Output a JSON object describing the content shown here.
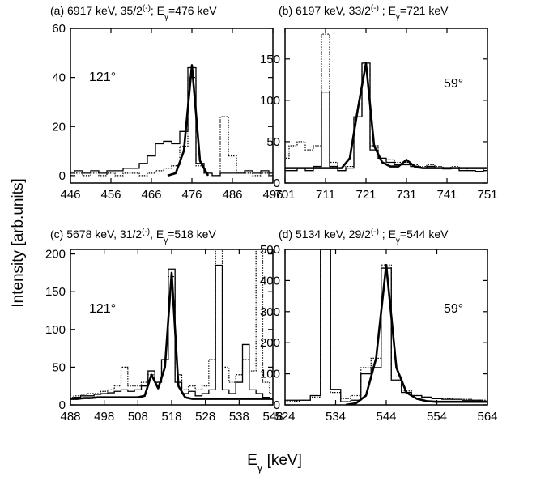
{
  "ylabel": "Intensity [arb.units]",
  "xlabel": [
    {
      "text": "E"
    },
    {
      "text": "γ",
      "shift": "sub"
    },
    {
      "text": " [keV]"
    }
  ],
  "chart_data": [
    {
      "type": "line",
      "step": true,
      "title": [
        {
          "text": "(a) 6917 keV, 35/2"
        },
        {
          "text": "(-)",
          "shift": "sup"
        },
        {
          "text": ";  E"
        },
        {
          "text": "γ",
          "shift": "sub"
        },
        {
          "text": "=476 keV"
        }
      ],
      "annotation": "121°",
      "x": [
        446,
        448,
        450,
        452,
        454,
        456,
        458,
        460,
        462,
        464,
        466,
        468,
        470,
        472,
        474,
        476,
        478,
        480,
        482,
        484,
        486,
        488,
        490,
        492,
        494,
        496
      ],
      "series": [
        {
          "color": "#000000",
          "style": "solid",
          "values": [
            1,
            2,
            1,
            2,
            1,
            2,
            2,
            3,
            3,
            5,
            8,
            13,
            14,
            13,
            18,
            44,
            5,
            1,
            0,
            1,
            1,
            1,
            2,
            1,
            2,
            1
          ]
        },
        {
          "color": "#000000",
          "style": "dotted",
          "values": [
            0,
            1,
            0,
            1,
            0,
            1,
            0,
            1,
            1,
            0,
            1,
            2,
            3,
            4,
            12,
            40,
            4,
            1,
            0,
            24,
            8,
            1,
            1,
            0,
            1,
            0
          ]
        },
        {
          "color": "#000000",
          "style": "fit",
          "values": [
            null,
            null,
            null,
            null,
            null,
            null,
            null,
            null,
            null,
            null,
            null,
            null,
            0,
            1,
            10,
            45,
            6,
            0,
            null,
            null,
            null,
            null,
            null,
            null,
            null,
            null
          ]
        }
      ],
      "xlim": [
        446,
        496
      ],
      "xticks": [
        446,
        456,
        466,
        476,
        486,
        496
      ],
      "ylim": [
        -3,
        60
      ],
      "yticks": [
        0,
        20,
        40,
        60
      ]
    },
    {
      "type": "line",
      "step": true,
      "title": [
        {
          "text": "(b) 6197 keV, 33/2"
        },
        {
          "text": "(-)",
          "shift": "sup"
        },
        {
          "text": " ; E"
        },
        {
          "text": "γ",
          "shift": "sub"
        },
        {
          "text": "=721 keV"
        }
      ],
      "annotation": "59°",
      "x": [
        701,
        703,
        705,
        707,
        709,
        711,
        713,
        715,
        717,
        719,
        721,
        723,
        725,
        727,
        729,
        731,
        733,
        735,
        737,
        739,
        741,
        743,
        745,
        747,
        749,
        751
      ],
      "series": [
        {
          "color": "#000000",
          "style": "dotted",
          "values": [
            30,
            45,
            50,
            40,
            45,
            180,
            25,
            15,
            20,
            80,
            145,
            45,
            30,
            28,
            25,
            25,
            22,
            20,
            22,
            20,
            18,
            20,
            18,
            15,
            18,
            15
          ]
        },
        {
          "color": "#000000",
          "style": "solid",
          "values": [
            15,
            15,
            18,
            15,
            20,
            110,
            20,
            15,
            18,
            80,
            145,
            40,
            30,
            25,
            22,
            22,
            20,
            18,
            20,
            18,
            17,
            18,
            15,
            15,
            14,
            15
          ]
        },
        {
          "color": "#000000",
          "style": "fit",
          "values": [
            18,
            18,
            18,
            18,
            18,
            18,
            18,
            18,
            30,
            90,
            145,
            45,
            25,
            20,
            20,
            28,
            20,
            18,
            18,
            18,
            18,
            18,
            18,
            18,
            18,
            18
          ]
        }
      ],
      "xlim": [
        701,
        751
      ],
      "xticks": [
        701,
        711,
        721,
        731,
        741,
        751
      ],
      "ylim": [
        0,
        187
      ],
      "yticks": [
        0,
        50,
        100,
        150
      ]
    },
    {
      "type": "line",
      "step": true,
      "title": [
        {
          "text": "(c) 5678 keV, 31/2"
        },
        {
          "text": "(-)",
          "shift": "sup"
        },
        {
          "text": ",  E"
        },
        {
          "text": "γ",
          "shift": "sub"
        },
        {
          "text": "=518 keV"
        }
      ],
      "annotation": "121°",
      "x": [
        488,
        490,
        492,
        494,
        496,
        498,
        500,
        502,
        504,
        506,
        508,
        510,
        512,
        514,
        516,
        518,
        520,
        522,
        524,
        526,
        528,
        530,
        532,
        534,
        536,
        538,
        540,
        542,
        544,
        546,
        548
      ],
      "series": [
        {
          "color": "#000000",
          "style": "dotted",
          "values": [
            10,
            12,
            14,
            15,
            15,
            18,
            20,
            25,
            50,
            25,
            25,
            30,
            40,
            30,
            60,
            170,
            40,
            20,
            25,
            20,
            25,
            60,
            220,
            50,
            30,
            40,
            60,
            45,
            220,
            30,
            15
          ]
        },
        {
          "color": "#000000",
          "style": "solid",
          "values": [
            8,
            10,
            12,
            12,
            14,
            15,
            16,
            18,
            20,
            18,
            20,
            25,
            45,
            30,
            60,
            180,
            30,
            15,
            18,
            12,
            15,
            20,
            185,
            20,
            15,
            30,
            80,
            20,
            15,
            10,
            8
          ]
        },
        {
          "color": "#000000",
          "style": "fit",
          "values": [
            8,
            8,
            9,
            9,
            10,
            10,
            10,
            10,
            10,
            10,
            10,
            12,
            40,
            22,
            50,
            175,
            25,
            10,
            8,
            8,
            8,
            8,
            8,
            8,
            8,
            8,
            8,
            8,
            8,
            8,
            8
          ]
        }
      ],
      "xlim": [
        488,
        548
      ],
      "xticks": [
        488,
        498,
        508,
        518,
        528,
        538,
        548
      ],
      "ylim": [
        0,
        206
      ],
      "yticks": [
        0,
        50,
        100,
        150,
        200
      ]
    },
    {
      "type": "line",
      "step": true,
      "title": [
        {
          "text": "(d) 5134 keV, 29/2"
        },
        {
          "text": "(-)",
          "shift": "sup"
        },
        {
          "text": " ; E"
        },
        {
          "text": "γ",
          "shift": "sub"
        },
        {
          "text": "=544 keV"
        }
      ],
      "annotation": "59°",
      "x": [
        524,
        526,
        528,
        530,
        532,
        534,
        536,
        538,
        540,
        542,
        544,
        546,
        548,
        550,
        552,
        554,
        556,
        558,
        560,
        562,
        564
      ],
      "series": [
        {
          "color": "#000000",
          "style": "solid",
          "values": [
            15,
            15,
            15,
            30,
            500,
            50,
            10,
            15,
            100,
            120,
            440,
            80,
            40,
            30,
            25,
            20,
            18,
            18,
            15,
            15,
            12
          ]
        },
        {
          "color": "#000000",
          "style": "dotted",
          "values": [
            10,
            12,
            15,
            25,
            500,
            40,
            20,
            30,
            120,
            150,
            450,
            90,
            45,
            30,
            25,
            22,
            20,
            18,
            18,
            15,
            15
          ]
        },
        {
          "color": "#000000",
          "style": "fit",
          "values": [
            null,
            null,
            null,
            null,
            null,
            null,
            0,
            5,
            30,
            150,
            450,
            120,
            40,
            20,
            12,
            10,
            10,
            10,
            10,
            10,
            10
          ]
        }
      ],
      "xlim": [
        524,
        564
      ],
      "xticks": [
        524,
        534,
        544,
        554,
        564
      ],
      "ylim": [
        0,
        500
      ],
      "yticks": [
        0,
        100,
        200,
        300,
        400,
        500
      ]
    }
  ]
}
